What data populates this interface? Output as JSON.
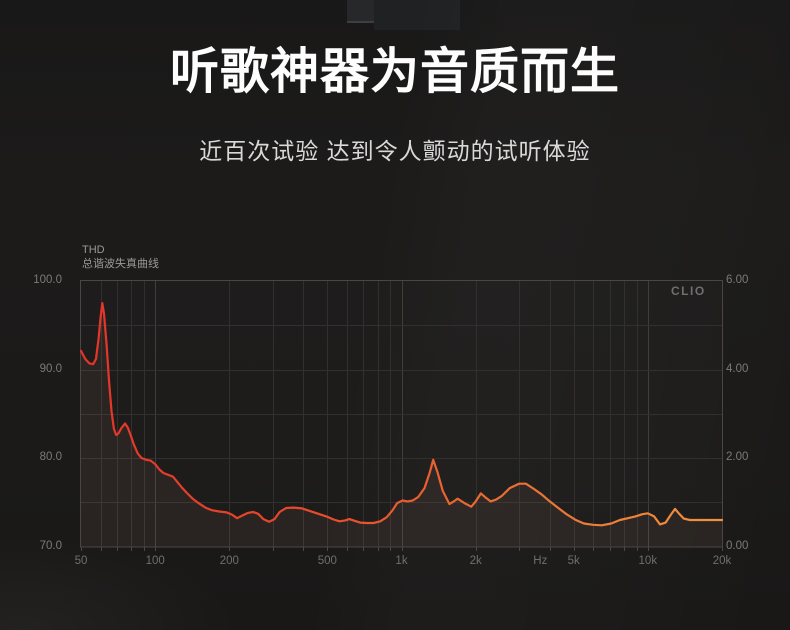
{
  "header": {
    "title": "听歌神器为音质而生",
    "subtitle": "近百次试验 达到令人颤动的试听体验"
  },
  "chart": {
    "label_en": "THD",
    "label_cn": "总谐波失真曲线",
    "watermark": "CLIO"
  },
  "colors": {
    "background": "#1b1a19",
    "title_text": "#fdfdfd",
    "subtitle_text": "#d9d9d9",
    "chart_label_text": "#999999",
    "axis_text": "#7a7a7a",
    "x_axis_text": "#6f6f6f",
    "watermark_text": "#6e6e6e",
    "grid_minor": "#322f2e",
    "grid_major": "#413d3c",
    "plot_border": "#4a4645",
    "curve_gradient_start": "#e4342a",
    "curve_gradient_mid1": "#e64a2b",
    "curve_gradient_mid2": "#eb6c33",
    "curve_gradient_end": "#ef9340",
    "curve_fill": "rgba(255,180,150,0.06)"
  },
  "chart_data": {
    "type": "line",
    "title": "THD 总谐波失真曲线",
    "watermark": "CLIO",
    "grid": true,
    "x_axis": {
      "scale": "log",
      "unit": "Hz",
      "min": 50,
      "max": 20000,
      "tick_labels": [
        "50",
        "100",
        "200",
        "500",
        "1k",
        "2k",
        "Hz",
        "5k",
        "10k",
        "20k"
      ],
      "tick_values": [
        50,
        100,
        200,
        500,
        1000,
        2000,
        3660,
        5000,
        10000,
        20000
      ]
    },
    "y_axis_left": {
      "min": 70,
      "max": 100,
      "tick_labels": [
        "100.0",
        "90.0",
        "80.0",
        "70.0"
      ],
      "tick_values": [
        100,
        90,
        80,
        70
      ],
      "minor_step": 5
    },
    "y_axis_right": {
      "min": 0,
      "max": 6,
      "tick_labels": [
        "6.00",
        "4.00",
        "2.00",
        "0.00"
      ],
      "tick_values": [
        6,
        4,
        2,
        0
      ]
    },
    "series": [
      {
        "name": "THD",
        "points": [
          [
            50,
            92.1
          ],
          [
            52,
            91.2
          ],
          [
            54,
            90.7
          ],
          [
            56,
            90.6
          ],
          [
            57.5,
            91.2
          ],
          [
            59,
            93.6
          ],
          [
            60,
            95.8
          ],
          [
            61,
            97.5
          ],
          [
            62,
            96.3
          ],
          [
            63.5,
            92.8
          ],
          [
            65,
            88.6
          ],
          [
            66.5,
            85.3
          ],
          [
            68,
            83.3
          ],
          [
            69.5,
            82.6
          ],
          [
            71,
            82.8
          ],
          [
            73,
            83.4
          ],
          [
            75.5,
            83.9
          ],
          [
            77.5,
            83.4
          ],
          [
            79.5,
            82.6
          ],
          [
            82,
            81.5
          ],
          [
            85,
            80.5
          ],
          [
            88,
            80.0
          ],
          [
            92,
            79.8
          ],
          [
            96,
            79.7
          ],
          [
            100,
            79.3
          ],
          [
            104,
            78.7
          ],
          [
            108,
            78.3
          ],
          [
            113,
            78.1
          ],
          [
            118,
            77.9
          ],
          [
            123,
            77.3
          ],
          [
            128,
            76.7
          ],
          [
            135,
            76.0
          ],
          [
            142,
            75.4
          ],
          [
            150,
            74.9
          ],
          [
            160,
            74.4
          ],
          [
            170,
            74.1
          ],
          [
            182,
            73.95
          ],
          [
            195,
            73.85
          ],
          [
            205,
            73.6
          ],
          [
            215,
            73.2
          ],
          [
            226,
            73.5
          ],
          [
            238,
            73.8
          ],
          [
            250,
            73.9
          ],
          [
            262,
            73.7
          ],
          [
            275,
            73.1
          ],
          [
            290,
            72.8
          ],
          [
            305,
            73.1
          ],
          [
            320,
            73.9
          ],
          [
            340,
            74.35
          ],
          [
            365,
            74.4
          ],
          [
            395,
            74.3
          ],
          [
            425,
            74.0
          ],
          [
            460,
            73.7
          ],
          [
            495,
            73.4
          ],
          [
            530,
            73.05
          ],
          [
            560,
            72.85
          ],
          [
            590,
            72.95
          ],
          [
            615,
            73.1
          ],
          [
            645,
            72.9
          ],
          [
            680,
            72.7
          ],
          [
            720,
            72.65
          ],
          [
            770,
            72.65
          ],
          [
            820,
            72.85
          ],
          [
            870,
            73.3
          ],
          [
            920,
            74.1
          ],
          [
            960,
            74.9
          ],
          [
            1010,
            75.2
          ],
          [
            1060,
            75.1
          ],
          [
            1110,
            75.2
          ],
          [
            1170,
            75.6
          ],
          [
            1240,
            76.6
          ],
          [
            1300,
            78.3
          ],
          [
            1345,
            79.8
          ],
          [
            1400,
            78.4
          ],
          [
            1470,
            76.3
          ],
          [
            1565,
            74.8
          ],
          [
            1630,
            75.1
          ],
          [
            1690,
            75.4
          ],
          [
            1800,
            74.9
          ],
          [
            1920,
            74.5
          ],
          [
            2000,
            75.1
          ],
          [
            2100,
            76.0
          ],
          [
            2200,
            75.5
          ],
          [
            2300,
            75.1
          ],
          [
            2420,
            75.3
          ],
          [
            2550,
            75.7
          ],
          [
            2750,
            76.6
          ],
          [
            3000,
            77.1
          ],
          [
            3200,
            77.1
          ],
          [
            3450,
            76.5
          ],
          [
            3700,
            75.9
          ],
          [
            4000,
            75.1
          ],
          [
            4350,
            74.3
          ],
          [
            4700,
            73.6
          ],
          [
            5100,
            73.0
          ],
          [
            5500,
            72.6
          ],
          [
            6000,
            72.45
          ],
          [
            6500,
            72.4
          ],
          [
            7100,
            72.6
          ],
          [
            7700,
            73.0
          ],
          [
            8300,
            73.2
          ],
          [
            8900,
            73.4
          ],
          [
            9500,
            73.65
          ],
          [
            10000,
            73.75
          ],
          [
            10600,
            73.4
          ],
          [
            11200,
            72.5
          ],
          [
            11800,
            72.7
          ],
          [
            12400,
            73.6
          ],
          [
            12900,
            74.25
          ],
          [
            13400,
            73.7
          ],
          [
            14000,
            73.15
          ],
          [
            14800,
            73.0
          ],
          [
            16000,
            73.0
          ],
          [
            18000,
            73.0
          ],
          [
            20000,
            73.0
          ]
        ]
      }
    ]
  }
}
